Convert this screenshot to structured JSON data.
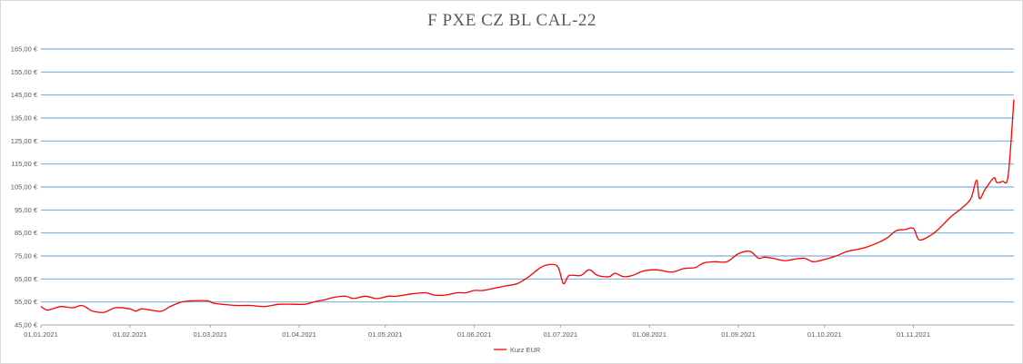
{
  "chart_data": {
    "type": "line",
    "title": "F PXE CZ BL CAL-22",
    "xlabel": "",
    "ylabel": "",
    "ylim": [
      45,
      165
    ],
    "y_ticks": [
      45,
      55,
      65,
      75,
      85,
      95,
      105,
      115,
      125,
      135,
      145,
      155,
      165
    ],
    "y_tick_labels": [
      "45,00 €",
      "55,00 €",
      "65,00 €",
      "75,00 €",
      "85,00 €",
      "95,00 €",
      "105,00 €",
      "115,00 €",
      "125,00 €",
      "135,00 €",
      "145,00 €",
      "155,00 €",
      "165,00 €"
    ],
    "x_ticks": [
      "2021-01-01",
      "2021-02-01",
      "2021-03-01",
      "2021-04-01",
      "2021-05-01",
      "2021-06-01",
      "2021-07-01",
      "2021-08-01",
      "2021-09-01",
      "2021-10-01",
      "2021-11-01"
    ],
    "x_tick_labels": [
      "01.01.2021",
      "01.02.2021",
      "01.03.2021",
      "01.04.2021",
      "01.05.2021",
      "01.06.2021",
      "01.07.2021",
      "01.08.2021",
      "01.09.2021",
      "01.10.2021",
      "01.11.2021"
    ],
    "xlim": [
      "2021-01-01",
      "2021-12-06"
    ],
    "grid": "horizontal",
    "legend": "bottom",
    "series": [
      {
        "name": "Kurz EUR",
        "color": "#ff0000",
        "points": [
          [
            "2021-01-01",
            53.0
          ],
          [
            "2021-01-03",
            51.5
          ],
          [
            "2021-01-05",
            52.0
          ],
          [
            "2021-01-08",
            53.0
          ],
          [
            "2021-01-12",
            52.5
          ],
          [
            "2021-01-15",
            53.5
          ],
          [
            "2021-01-17",
            52.5
          ],
          [
            "2021-01-19",
            51.0
          ],
          [
            "2021-01-23",
            50.5
          ],
          [
            "2021-01-27",
            52.5
          ],
          [
            "2021-02-01",
            52.0
          ],
          [
            "2021-02-03",
            51.0
          ],
          [
            "2021-02-05",
            52.0
          ],
          [
            "2021-02-08",
            51.5
          ],
          [
            "2021-02-12",
            51.0
          ],
          [
            "2021-02-15",
            53.0
          ],
          [
            "2021-02-19",
            55.0
          ],
          [
            "2021-02-23",
            55.5
          ],
          [
            "2021-02-28",
            55.5
          ],
          [
            "2021-03-02",
            54.5
          ],
          [
            "2021-03-05",
            54.0
          ],
          [
            "2021-03-10",
            53.5
          ],
          [
            "2021-03-15",
            53.5
          ],
          [
            "2021-03-20",
            53.0
          ],
          [
            "2021-03-25",
            54.0
          ],
          [
            "2021-03-30",
            54.0
          ],
          [
            "2021-04-03",
            54.0
          ],
          [
            "2021-04-06",
            55.0
          ],
          [
            "2021-04-10",
            56.0
          ],
          [
            "2021-04-13",
            57.0
          ],
          [
            "2021-04-17",
            57.5
          ],
          [
            "2021-04-20",
            56.5
          ],
          [
            "2021-04-24",
            57.5
          ],
          [
            "2021-04-28",
            56.5
          ],
          [
            "2021-05-02",
            57.5
          ],
          [
            "2021-05-05",
            57.5
          ],
          [
            "2021-05-10",
            58.5
          ],
          [
            "2021-05-15",
            59.0
          ],
          [
            "2021-05-18",
            58.0
          ],
          [
            "2021-05-22",
            58.0
          ],
          [
            "2021-05-26",
            59.0
          ],
          [
            "2021-05-29",
            59.0
          ],
          [
            "2021-06-01",
            60.0
          ],
          [
            "2021-06-04",
            60.0
          ],
          [
            "2021-06-08",
            61.0
          ],
          [
            "2021-06-12",
            62.0
          ],
          [
            "2021-06-16",
            63.0
          ],
          [
            "2021-06-20",
            66.0
          ],
          [
            "2021-06-23",
            69.0
          ],
          [
            "2021-06-26",
            71.0
          ],
          [
            "2021-06-30",
            70.5
          ],
          [
            "2021-07-02",
            63.0
          ],
          [
            "2021-07-04",
            66.5
          ],
          [
            "2021-07-08",
            66.5
          ],
          [
            "2021-07-11",
            69.0
          ],
          [
            "2021-07-14",
            66.5
          ],
          [
            "2021-07-18",
            66.0
          ],
          [
            "2021-07-20",
            67.5
          ],
          [
            "2021-07-23",
            66.0
          ],
          [
            "2021-07-26",
            66.5
          ],
          [
            "2021-07-30",
            68.5
          ],
          [
            "2021-08-03",
            69.0
          ],
          [
            "2021-08-06",
            68.5
          ],
          [
            "2021-08-09",
            68.0
          ],
          [
            "2021-08-13",
            69.5
          ],
          [
            "2021-08-17",
            70.0
          ],
          [
            "2021-08-20",
            72.0
          ],
          [
            "2021-08-24",
            72.5
          ],
          [
            "2021-08-28",
            72.5
          ],
          [
            "2021-09-01",
            76.0
          ],
          [
            "2021-09-05",
            77.0
          ],
          [
            "2021-09-08",
            74.0
          ],
          [
            "2021-09-10",
            74.5
          ],
          [
            "2021-09-13",
            74.0
          ],
          [
            "2021-09-17",
            73.0
          ],
          [
            "2021-09-20",
            73.5
          ],
          [
            "2021-09-24",
            74.0
          ],
          [
            "2021-09-27",
            72.5
          ],
          [
            "2021-10-01",
            73.5
          ],
          [
            "2021-10-05",
            75.0
          ],
          [
            "2021-10-09",
            77.0
          ],
          [
            "2021-10-13",
            78.0
          ],
          [
            "2021-10-16",
            79.0
          ],
          [
            "2021-10-20",
            81.0
          ],
          [
            "2021-10-23",
            83.0
          ],
          [
            "2021-10-26",
            86.0
          ],
          [
            "2021-10-29",
            86.5
          ],
          [
            "2021-11-01",
            87.0
          ],
          [
            "2021-11-03",
            82.0
          ],
          [
            "2021-11-07",
            84.0
          ],
          [
            "2021-11-10",
            87.0
          ],
          [
            "2021-11-14",
            92.0
          ],
          [
            "2021-11-18",
            96.0
          ],
          [
            "2021-11-21",
            100.0
          ],
          [
            "2021-11-23",
            108.0
          ],
          [
            "2021-11-24",
            100.0
          ],
          [
            "2021-11-26",
            104.0
          ],
          [
            "2021-11-29",
            109.0
          ],
          [
            "2021-11-30",
            107.0
          ],
          [
            "2021-12-02",
            107.5
          ],
          [
            "2021-12-04",
            110.0
          ],
          [
            "2021-12-06",
            143.0
          ]
        ]
      }
    ]
  }
}
